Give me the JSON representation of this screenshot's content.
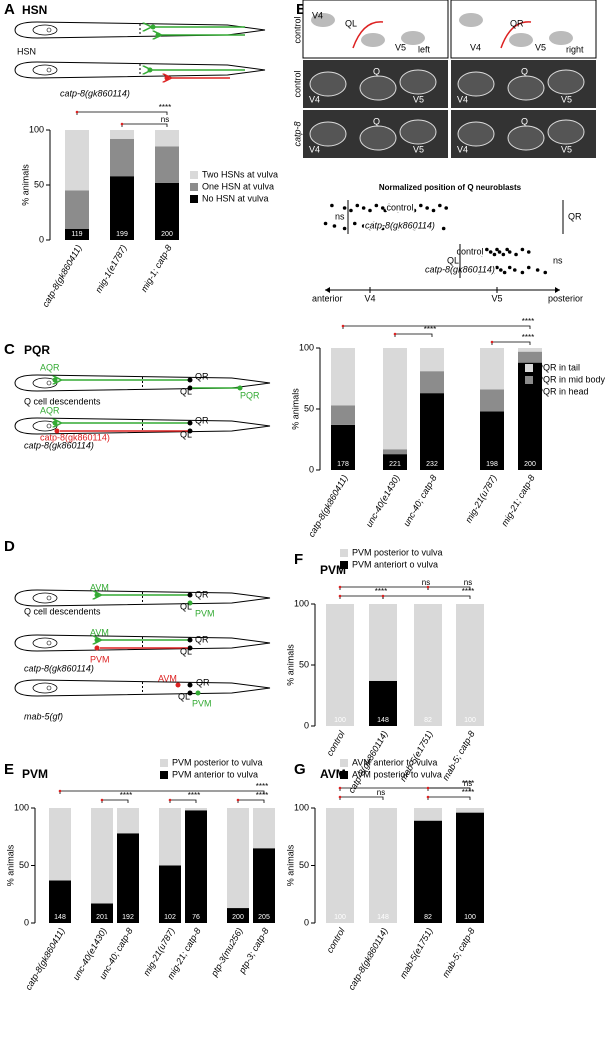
{
  "panel_letters": [
    "A",
    "B",
    "C",
    "D",
    "E",
    "F",
    "G"
  ],
  "diagrams": {
    "A": {
      "title": "HSN",
      "labels": [
        "HSN",
        "catp-8(gk860114)"
      ]
    },
    "B": {
      "side_labels": [
        "left",
        "right"
      ],
      "row_labels": [
        "control",
        "control",
        "catp-8"
      ],
      "cartoon_labels": [
        "V4",
        "QL",
        "V5",
        "QR",
        "V4",
        "V5"
      ],
      "image_labels": [
        "Q",
        "V4",
        "V5",
        "Q",
        "V4",
        "V5",
        "Q",
        "V4",
        "V5",
        "Q",
        "V4",
        "V5"
      ]
    },
    "C": {
      "title": "PQR",
      "labels": [
        "AQR",
        "QR",
        "QL",
        "PQR",
        "Q cell descendents",
        "AQR",
        "QR",
        "QL",
        "PQR",
        "catp-8(gk860114)"
      ]
    },
    "D": {
      "labels": [
        "AVM",
        "QR",
        "QL",
        "PVM",
        "Q cell descendents",
        "AVM",
        "QR",
        "QL",
        "PVM",
        "catp-8(gk860114)",
        "AVM",
        "QR",
        "QL",
        "PVM",
        "mab-5(gf)"
      ]
    }
  },
  "chart_data": [
    {
      "type": "bar",
      "stacked": true,
      "ylabel": "% animals",
      "categories": [
        "catp-8(gk860411)",
        "mig-1(e1787)",
        "mig-1; catp-8"
      ],
      "series": [
        {
          "name": "No HSN at vulva",
          "color": "#000000",
          "values": [
            10,
            58,
            52
          ]
        },
        {
          "name": "One HSN at vulva",
          "color": "#8c8c8c",
          "values": [
            35,
            34,
            33
          ]
        },
        {
          "name": "Two HSNs at vulva",
          "color": "#d9d9d9",
          "values": [
            55,
            8,
            15
          ]
        }
      ],
      "n": [
        119,
        199,
        200
      ],
      "ylim": [
        0,
        100
      ],
      "yticks": [
        0,
        50,
        100
      ],
      "annotations": [
        "****",
        "ns"
      ]
    },
    {
      "type": "dotplot",
      "title": "Normalized position of Q neuroblasts",
      "xlabels": [
        "anterior",
        "posterior"
      ],
      "groups": [
        "QR",
        "QL"
      ],
      "annotations": [
        "ns",
        "ns"
      ],
      "xlim": [
        -0.6,
        1.45
      ],
      "xticks": [
        {
          "value": 0,
          "label": "V4"
        },
        {
          "value": 1,
          "label": "V5"
        }
      ],
      "series": [
        {
          "name": "control",
          "color": "#000000",
          "values": [
            -0.3,
            -0.2,
            -0.15,
            -0.1,
            -0.05,
            0,
            0.05,
            0.1,
            0.12,
            0.15,
            0.2,
            0.22,
            0.25,
            0.3,
            0.35,
            0.4,
            0.45,
            0.5,
            0.55,
            0.6
          ]
        },
        {
          "name": "catp-8(gk860114)",
          "color": "#000000",
          "values": [
            -0.35,
            -0.28,
            -0.2,
            -0.12,
            -0.05,
            0,
            0.03,
            0.08,
            0.1,
            0.15,
            0.18,
            0.22,
            0.28,
            0.3,
            0.35,
            0.42,
            0.5,
            0.58
          ]
        },
        {
          "name": "control",
          "color": "#000000",
          "values": [
            0.8,
            0.85,
            0.88,
            0.92,
            0.95,
            0.98,
            1.0,
            1.02,
            1.05,
            1.08,
            1.1,
            1.15,
            1.2,
            1.25
          ]
        },
        {
          "name": "catp-8(gk860114)",
          "color": "#000000",
          "values": [
            0.78,
            0.82,
            0.86,
            0.9,
            0.94,
            0.97,
            1.0,
            1.03,
            1.06,
            1.1,
            1.14,
            1.2,
            1.25,
            1.32,
            1.38
          ]
        }
      ]
    },
    {
      "type": "bar",
      "stacked": true,
      "ylabel": "% animals",
      "categories": [
        "catp-8(gk860411)",
        "unc-40(e1430)",
        "unc-40; catp-8",
        "mig-21(u787)",
        "mig-21; catp-8"
      ],
      "series": [
        {
          "name": "PQR in head",
          "color": "#000000",
          "values": [
            37,
            13,
            63,
            48,
            88
          ]
        },
        {
          "name": "PQR in mid body",
          "color": "#8c8c8c",
          "values": [
            16,
            4,
            18,
            18,
            9
          ]
        },
        {
          "name": "PQR in tail",
          "color": "#d9d9d9",
          "values": [
            47,
            83,
            19,
            34,
            3
          ]
        }
      ],
      "n": [
        178,
        221,
        232,
        198,
        200
      ],
      "ylim": [
        0,
        100
      ],
      "yticks": [
        0,
        50,
        100
      ],
      "annotations": [
        "****",
        "****",
        "****"
      ]
    },
    {
      "type": "bar",
      "stacked": true,
      "title": "PVM",
      "ylabel": "% animals",
      "categories": [
        "control",
        "catp-8(gk860114)",
        "mab-5(e1751)",
        "mab-5; catp-8"
      ],
      "series": [
        {
          "name": "PVM anteriort o vulva",
          "color": "#000000",
          "values": [
            0,
            37,
            0,
            0
          ]
        },
        {
          "name": "PVM posterior to vulva",
          "color": "#d9d9d9",
          "values": [
            100,
            63,
            100,
            100
          ]
        }
      ],
      "n": [
        100,
        148,
        82,
        100
      ],
      "ylim": [
        0,
        100
      ],
      "yticks": [
        0,
        50,
        100
      ],
      "annotations": [
        "ns",
        "****",
        "ns",
        "****"
      ]
    },
    {
      "type": "bar",
      "stacked": true,
      "title": "PVM",
      "ylabel": "% animals",
      "categories": [
        "catp-8(gk860411)",
        "unc-40(e1430)",
        "unc-40; catp-8",
        "mig-21(u787)",
        "mig-21; catp-8",
        "ptp-3(mu256)",
        "ptp-3; catp-8"
      ],
      "series": [
        {
          "name": "PVM anterior to vulva",
          "color": "#000000",
          "values": [
            37,
            17,
            78,
            50,
            98,
            13,
            65
          ]
        },
        {
          "name": "PVM posterior to vulva",
          "color": "#d9d9d9",
          "values": [
            63,
            83,
            22,
            50,
            2,
            87,
            35
          ]
        }
      ],
      "n": [
        148,
        201,
        192,
        102,
        76,
        200,
        205
      ],
      "ylim": [
        0,
        100
      ],
      "yticks": [
        0,
        50,
        100
      ],
      "annotations": [
        "****",
        "****",
        "****",
        "****"
      ]
    },
    {
      "type": "bar",
      "stacked": true,
      "title": "AVM",
      "ylabel": "% animals",
      "categories": [
        "control",
        "catp-8(gk860114)",
        "mab-5(e1751)",
        "mab-5; catp-8"
      ],
      "series": [
        {
          "name": "AVM posterior to vulva",
          "color": "#000000",
          "values": [
            0,
            0,
            89,
            96
          ]
        },
        {
          "name": "AVM anterior to vulva",
          "color": "#d9d9d9",
          "values": [
            100,
            100,
            11,
            4
          ]
        }
      ],
      "n": [
        100,
        148,
        82,
        100
      ],
      "ylim": [
        0,
        100
      ],
      "yticks": [
        0,
        50,
        100
      ],
      "annotations": [
        "****",
        "ns",
        "ns",
        "****"
      ]
    }
  ]
}
